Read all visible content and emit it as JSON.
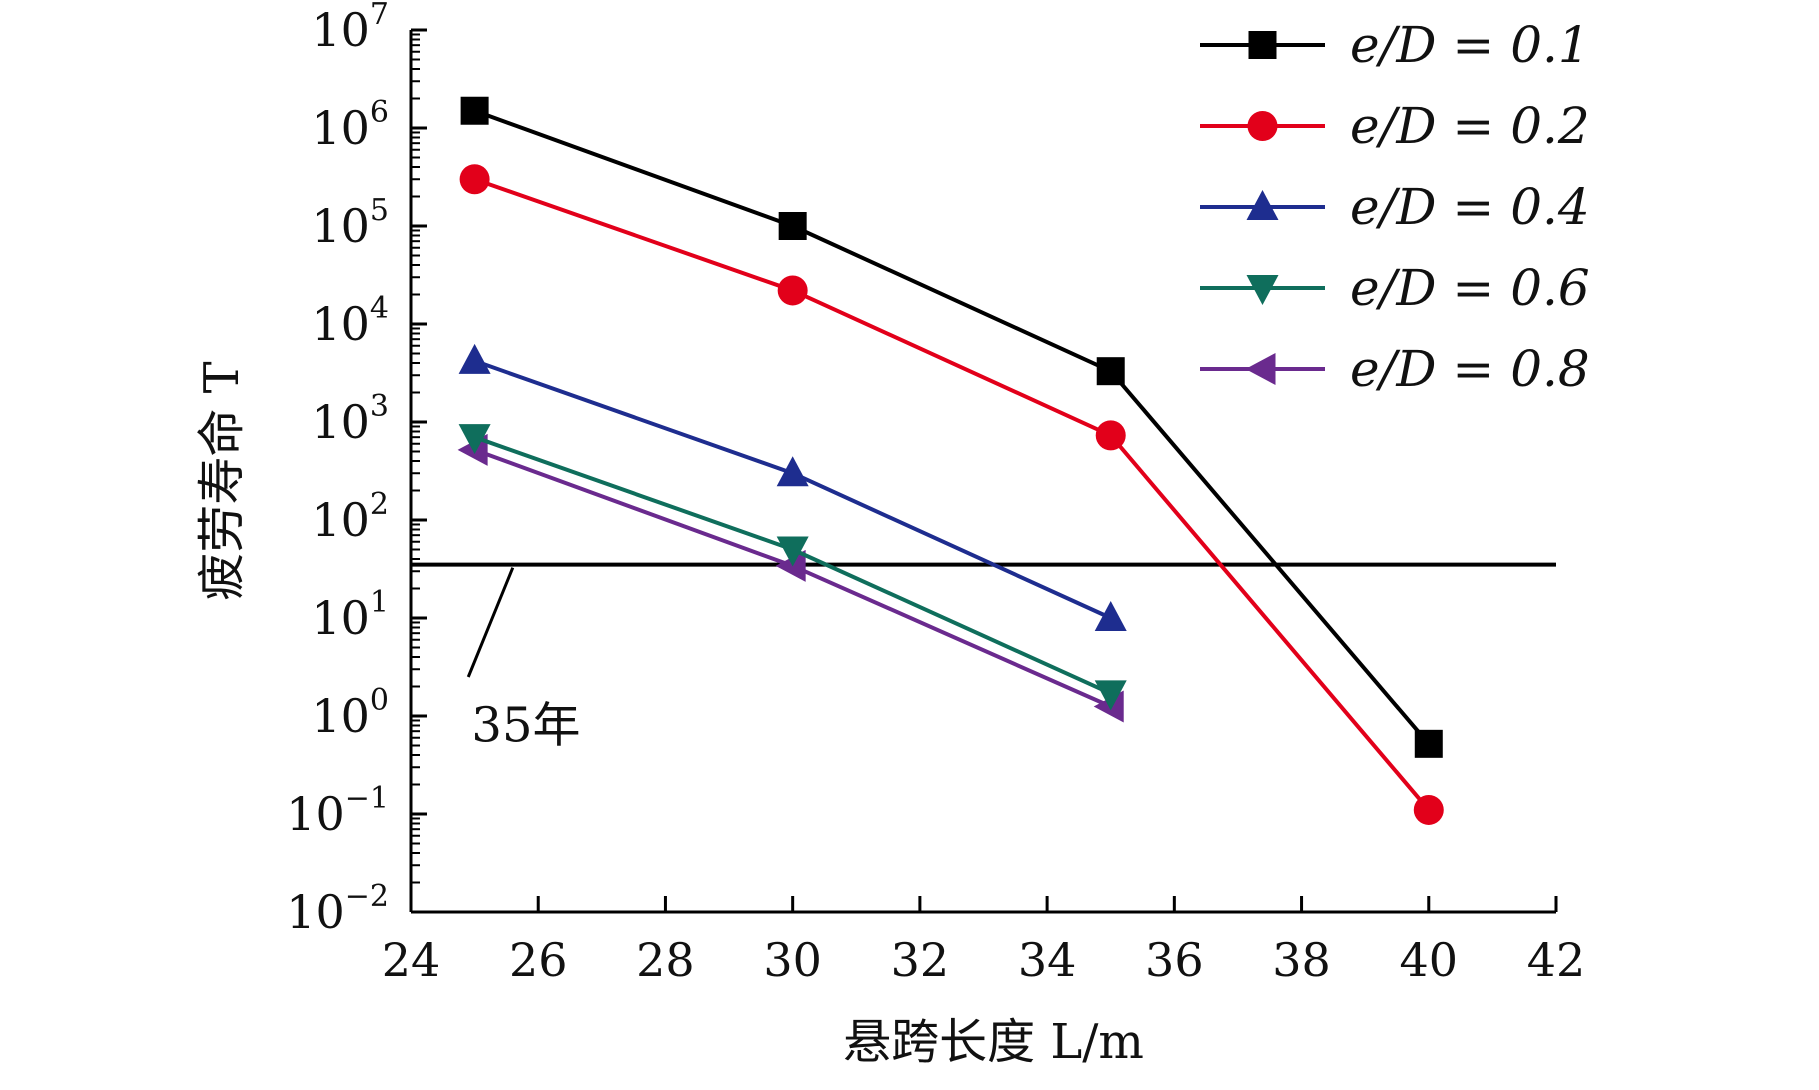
{
  "chart_data": {
    "type": "line",
    "title": "",
    "xlabel": "悬跨长度 L/m",
    "ylabel": "疲劳寿命 T",
    "yscale": "log",
    "xlim": [
      24,
      42
    ],
    "ylim": [
      0.01,
      10000000
    ],
    "x_ticks": [
      "24",
      "26",
      "28",
      "30",
      "32",
      "34",
      "36",
      "38",
      "40",
      "42"
    ],
    "y_ticks": [
      {
        "base": "10",
        "exp": "−2"
      },
      {
        "base": "10",
        "exp": "−1"
      },
      {
        "base": "10",
        "exp": "0"
      },
      {
        "base": "10",
        "exp": "1"
      },
      {
        "base": "10",
        "exp": "2"
      },
      {
        "base": "10",
        "exp": "3"
      },
      {
        "base": "10",
        "exp": "4"
      },
      {
        "base": "10",
        "exp": "5"
      },
      {
        "base": "10",
        "exp": "6"
      },
      {
        "base": "10",
        "exp": "7"
      }
    ],
    "legend_position": "top-right",
    "series": [
      {
        "name": "e/D = 0.1",
        "color": "#000000",
        "marker": "square",
        "x": [
          25,
          30,
          35,
          40
        ],
        "y": [
          1500000,
          100000,
          3300,
          0.52
        ]
      },
      {
        "name": "e/D = 0.2",
        "color": "#e2001a",
        "marker": "circle",
        "x": [
          25,
          30,
          35,
          40
        ],
        "y": [
          300000,
          22000,
          730,
          0.11
        ]
      },
      {
        "name": "e/D = 0.4",
        "color": "#1e2d8f",
        "marker": "triangle-up",
        "x": [
          25,
          30,
          35
        ],
        "y": [
          4200,
          300,
          10
        ]
      },
      {
        "name": "e/D = 0.6",
        "color": "#0f6e5c",
        "marker": "triangle-down",
        "x": [
          25,
          30,
          35
        ],
        "y": [
          700,
          50,
          1.7
        ]
      },
      {
        "name": "e/D = 0.8",
        "color": "#6a2a8e",
        "marker": "triangle-left",
        "x": [
          25,
          30,
          35
        ],
        "y": [
          520,
          34,
          1.25
        ]
      }
    ],
    "reference_line": {
      "y": 35,
      "label": "35年"
    }
  }
}
